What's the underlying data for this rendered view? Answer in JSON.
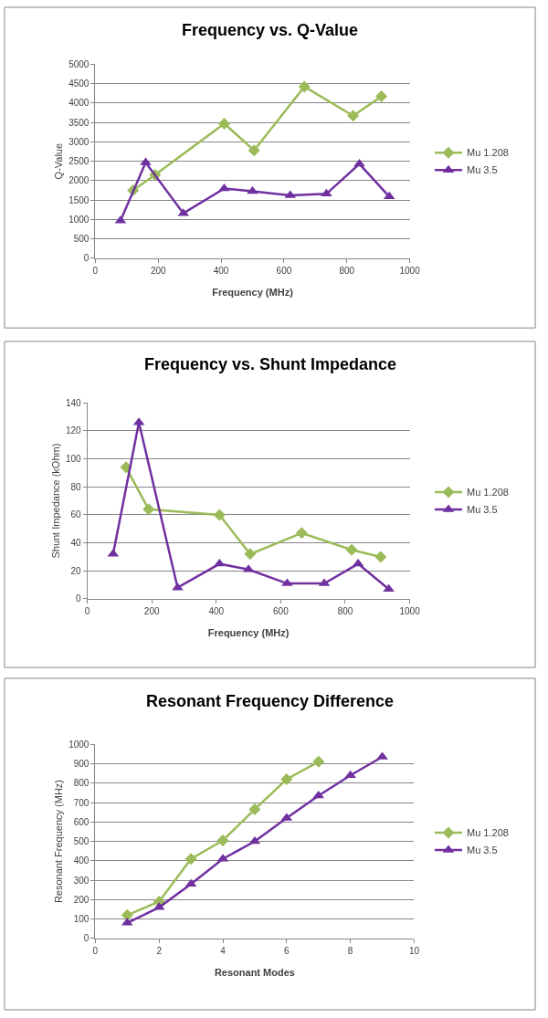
{
  "chart_data": [
    {
      "type": "line",
      "title": "Frequency vs. Q-Value",
      "xlabel": "Frequency (MHz)",
      "ylabel": "Q-Value",
      "xlim": [
        0,
        1000
      ],
      "xticks": [
        0,
        200,
        400,
        600,
        800,
        1000
      ],
      "ylim": [
        0,
        5000
      ],
      "yticks": [
        0,
        500,
        1000,
        1500,
        2000,
        2500,
        3000,
        3500,
        4000,
        4500,
        5000
      ],
      "grid": "y",
      "legend": "right",
      "series": [
        {
          "name": "Mu 1.208",
          "color": "#9bbb59",
          "marker": "diamond",
          "x": [
            120,
            190,
            410,
            505,
            665,
            820,
            910
          ],
          "values": [
            1750,
            2150,
            3470,
            2780,
            4420,
            3670,
            4170
          ]
        },
        {
          "name": "Mu 3.5",
          "color": "#7030a0",
          "marker": "triangle",
          "x": [
            80,
            160,
            280,
            410,
            500,
            620,
            735,
            840,
            935
          ],
          "values": [
            970,
            2470,
            1160,
            1800,
            1730,
            1620,
            1660,
            2430,
            1590
          ]
        }
      ]
    },
    {
      "type": "line",
      "title": "Frequency vs. Shunt Impedance",
      "xlabel": "Frequency (MHz)",
      "ylabel": "Shunt Impedance (kOhm)",
      "xlim": [
        0,
        1000
      ],
      "xticks": [
        0,
        200,
        400,
        600,
        800,
        1000
      ],
      "ylim": [
        0,
        140
      ],
      "yticks": [
        0,
        20,
        40,
        60,
        80,
        100,
        120,
        140
      ],
      "grid": "y",
      "legend": "right",
      "series": [
        {
          "name": "Mu 1.208",
          "color": "#9bbb59",
          "marker": "diamond",
          "x": [
            120,
            190,
            410,
            505,
            665,
            820,
            910
          ],
          "values": [
            94,
            64,
            60,
            32,
            47,
            35,
            30
          ]
        },
        {
          "name": "Mu 3.5",
          "color": "#7030a0",
          "marker": "triangle",
          "x": [
            80,
            160,
            280,
            410,
            500,
            620,
            735,
            840,
            935
          ],
          "values": [
            32,
            126,
            8,
            25,
            21,
            11,
            11,
            25,
            7
          ]
        }
      ]
    },
    {
      "type": "line",
      "title": "Resonant Frequency Difference",
      "xlabel": "Resonant Modes",
      "ylabel": "Resonant Frequency (MHz)",
      "xlim": [
        0,
        10
      ],
      "xticks": [
        0,
        2,
        4,
        6,
        8,
        10
      ],
      "ylim": [
        0,
        1000
      ],
      "yticks": [
        0,
        100,
        200,
        300,
        400,
        500,
        600,
        700,
        800,
        900,
        1000
      ],
      "grid": "y",
      "legend": "right",
      "series": [
        {
          "name": "Mu 1.208",
          "color": "#9bbb59",
          "marker": "diamond",
          "x": [
            1,
            2,
            3,
            4,
            5,
            6,
            7
          ],
          "values": [
            120,
            190,
            410,
            505,
            665,
            820,
            910
          ]
        },
        {
          "name": "Mu 3.5",
          "color": "#7030a0",
          "marker": "triangle",
          "x": [
            1,
            2,
            3,
            4,
            5,
            6,
            7,
            8,
            9
          ],
          "values": [
            80,
            160,
            280,
            410,
            500,
            620,
            735,
            840,
            935
          ]
        }
      ]
    }
  ]
}
